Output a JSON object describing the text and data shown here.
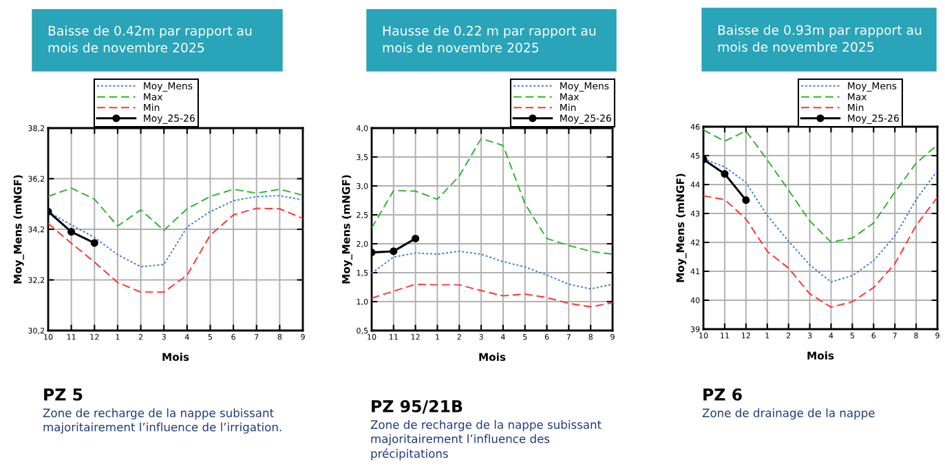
{
  "chart_data": [
    {
      "type": "line",
      "title": "Baisse de 0.42m par rapport au\nmois de novembre 2025",
      "subtitle": "PZ 5",
      "annotations": [
        "Zone de recharge de la nappe subissant\nmajoritairement l’influence de l’irrigation."
      ],
      "xlabel": "Mois",
      "ylabel": "Moy_Mens (mNGF)",
      "categories": [
        "10",
        "11",
        "12",
        "1",
        "2",
        "3",
        "4",
        "5",
        "6",
        "7",
        "8",
        "9"
      ],
      "ylim": [
        30.2,
        38.2
      ],
      "yticks": [
        {
          "value": 30.2,
          "label": "30,2"
        },
        {
          "value": 32.2,
          "label": "32,2"
        },
        {
          "value": 34.2,
          "label": "34,2"
        },
        {
          "value": 36.2,
          "label": "36,2"
        },
        {
          "value": 38.2,
          "label": "38,2"
        }
      ],
      "grid": true,
      "legend": "top",
      "series": [
        {
          "name": "Moy_Mens",
          "color": "#3b7dd8",
          "line_style": "dotted",
          "values": [
            34.9,
            34.37,
            33.88,
            33.2,
            32.72,
            32.81,
            34.29,
            34.9,
            35.33,
            35.49,
            35.53,
            35.36
          ]
        },
        {
          "name": "Max",
          "color": "#2db52d",
          "line_style": "dashed",
          "values": [
            35.5,
            35.83,
            35.39,
            34.33,
            34.97,
            34.16,
            35.01,
            35.5,
            35.78,
            35.63,
            35.78,
            35.55
          ]
        },
        {
          "name": "Min",
          "color": "#ff3333",
          "line_style": "dashed",
          "values": [
            34.43,
            33.65,
            32.9,
            32.1,
            31.72,
            31.72,
            32.39,
            33.97,
            34.77,
            35.03,
            35.01,
            34.63
          ]
        },
        {
          "name": "Moy_25-26",
          "color": "#000000",
          "line_style": "solid",
          "marker": "circle",
          "values": [
            34.9,
            34.1,
            33.66,
            null,
            null,
            null,
            null,
            null,
            null,
            null,
            null,
            null
          ]
        }
      ]
    },
    {
      "type": "line",
      "title": "Hausse de 0.22 m par rapport au\nmois de novembre 2025",
      "subtitle": "PZ 95/21B",
      "annotations": [
        "Zone de recharge de la nappe subissant\nmajoritairement l’influence des\nprécipitations"
      ],
      "xlabel": "Mois",
      "ylabel": "Moy_Mens (mNGF)",
      "categories": [
        "10",
        "11",
        "12",
        "1",
        "2",
        "3",
        "4",
        "5",
        "6",
        "7",
        "8",
        "9"
      ],
      "ylim": [
        0.5,
        4.0
      ],
      "yticks": [
        {
          "value": 0.5,
          "label": "0,5"
        },
        {
          "value": 1.0,
          "label": "1,0"
        },
        {
          "value": 1.5,
          "label": "1,5"
        },
        {
          "value": 2.0,
          "label": "2,0"
        },
        {
          "value": 2.5,
          "label": "2,5"
        },
        {
          "value": 3.0,
          "label": "3,0"
        },
        {
          "value": 3.5,
          "label": "3,5"
        },
        {
          "value": 4.0,
          "label": "4,0"
        }
      ],
      "grid": true,
      "legend": "top right",
      "series": [
        {
          "name": "Moy_Mens",
          "color": "#3b7dd8",
          "line_style": "dotted",
          "values": [
            1.49,
            1.77,
            1.84,
            1.82,
            1.87,
            1.82,
            1.69,
            1.6,
            1.46,
            1.3,
            1.22,
            1.3
          ]
        },
        {
          "name": "Max",
          "color": "#2db52d",
          "line_style": "dashed",
          "values": [
            2.27,
            2.92,
            2.91,
            2.77,
            3.17,
            3.82,
            3.7,
            2.69,
            2.09,
            1.97,
            1.87,
            1.82
          ]
        },
        {
          "name": "Min",
          "color": "#ff3333",
          "line_style": "dashed",
          "values": [
            1.06,
            1.18,
            1.3,
            1.29,
            1.29,
            1.19,
            1.1,
            1.13,
            1.07,
            0.97,
            0.91,
            0.98
          ]
        },
        {
          "name": "Moy_25-26",
          "color": "#000000",
          "line_style": "solid",
          "marker": "circle",
          "values": [
            1.85,
            1.87,
            2.09,
            null,
            null,
            null,
            null,
            null,
            null,
            null,
            null,
            null
          ]
        }
      ]
    },
    {
      "type": "line",
      "title": "Baisse de 0.93m par rapport au\nmois de novembre 2025",
      "subtitle": "PZ 6",
      "annotations": [
        "Zone de drainage de la nappe"
      ],
      "xlabel": "Mois",
      "ylabel": "Moy_Mens (mNGF)",
      "categories": [
        "10",
        "11",
        "12",
        "1",
        "2",
        "3",
        "4",
        "5",
        "6",
        "7",
        "8",
        "9"
      ],
      "ylim": [
        39,
        46
      ],
      "yticks": [
        39,
        40,
        41,
        42,
        43,
        44,
        45,
        46
      ],
      "grid": true,
      "legend": "top right",
      "series": [
        {
          "name": "Moy_Mens",
          "color": "#3b7dd8",
          "line_style": "dotted",
          "values": [
            44.89,
            44.61,
            44.07,
            42.93,
            42.04,
            41.22,
            40.63,
            40.85,
            41.37,
            42.22,
            43.48,
            44.48
          ]
        },
        {
          "name": "Max",
          "color": "#2db52d",
          "line_style": "dashed",
          "values": [
            45.89,
            45.5,
            45.85,
            44.85,
            43.81,
            42.74,
            42.01,
            42.15,
            42.67,
            43.74,
            44.74,
            45.37
          ]
        },
        {
          "name": "Min",
          "color": "#ff3333",
          "line_style": "dashed",
          "values": [
            43.61,
            43.48,
            42.81,
            41.69,
            41.11,
            40.22,
            39.76,
            39.95,
            40.44,
            41.26,
            42.59,
            43.56
          ]
        },
        {
          "name": "Moy_25-26",
          "color": "#000000",
          "line_style": "solid",
          "marker": "circle",
          "values": [
            44.87,
            44.37,
            43.46,
            null,
            null,
            null,
            null,
            null,
            null,
            null,
            null,
            null
          ]
        }
      ]
    }
  ]
}
